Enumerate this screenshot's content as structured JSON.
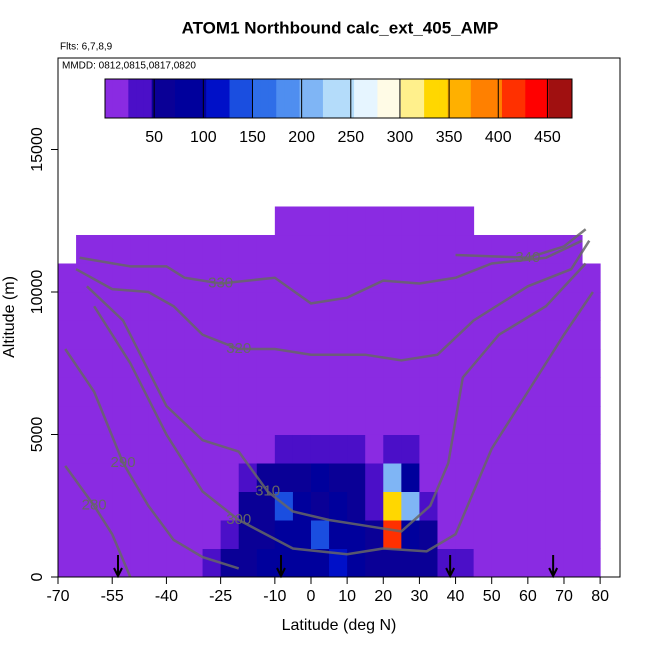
{
  "chart_data": {
    "type": "heatmap",
    "title": "ATOM1 Northbound calc_ext_405_AMP",
    "subtitle": "Flts: 6,7,8,9",
    "annotation": "MMDD: 0812,0815,0817,0820",
    "x_label": "Latitude (deg N)",
    "y_label": "Altitude (m)",
    "xlim": [
      -70,
      85.5
    ],
    "ylim": [
      0,
      18210
    ],
    "xticks": [
      -70,
      -55,
      -40,
      -25,
      -10,
      0,
      10,
      20,
      30,
      40,
      50,
      60,
      70,
      80
    ],
    "yticks": [
      0,
      5000,
      10000,
      15000
    ],
    "colorbar": {
      "lim": [
        0,
        475
      ],
      "ticks": [
        50,
        100,
        150,
        200,
        250,
        300,
        350,
        400,
        450
      ],
      "colors": [
        "#8a2be2",
        "#4b0fc8",
        "#0a0096",
        "#00009c",
        "#0010c8",
        "#1a4ee0",
        "#2f6ee8",
        "#4f8ef0",
        "#7fb5f5",
        "#b4dcfa",
        "#e6f5ff",
        "#fffbe6",
        "#fff08c",
        "#ffd700",
        "#ffb000",
        "#ff8000",
        "#ff3000",
        "#ff0000",
        "#a01010"
      ]
    },
    "grid": {
      "lat_edges": [
        -70,
        -65,
        -60,
        -55,
        -50,
        -45,
        -40,
        -35,
        -30,
        -25,
        -20,
        -15,
        -10,
        -5,
        0,
        5,
        10,
        15,
        20,
        25,
        30,
        35,
        40,
        45,
        50,
        55,
        60,
        65,
        70,
        75,
        80
      ],
      "alt_edges": [
        0,
        1000,
        2000,
        3000,
        4000,
        5000,
        6000,
        7000,
        8000,
        9000,
        10000,
        11000,
        12000,
        13000
      ],
      "values": [
        [
          5,
          15,
          20,
          15,
          10,
          10,
          8,
          15,
          40,
          60,
          70,
          80,
          90,
          80,
          90,
          100,
          80,
          70,
          60,
          70,
          60,
          40,
          30,
          10,
          5,
          10,
          15,
          5,
          10,
          5
        ],
        [
          5,
          5,
          10,
          8,
          5,
          5,
          5,
          10,
          20,
          40,
          60,
          70,
          80,
          90,
          140,
          90,
          80,
          70,
          420,
          90,
          60,
          20,
          10,
          5,
          5,
          5,
          5,
          10,
          5,
          5
        ],
        [
          5,
          5,
          5,
          5,
          5,
          5,
          5,
          5,
          10,
          20,
          60,
          70,
          130,
          80,
          70,
          80,
          60,
          40,
          330,
          200,
          40,
          10,
          5,
          5,
          5,
          5,
          5,
          5,
          5,
          5
        ],
        [
          5,
          5,
          5,
          5,
          5,
          5,
          5,
          5,
          5,
          10,
          30,
          60,
          70,
          60,
          80,
          60,
          50,
          30,
          220,
          90,
          20,
          5,
          5,
          5,
          5,
          5,
          5,
          5,
          5,
          5
        ],
        [
          5,
          5,
          5,
          5,
          5,
          5,
          5,
          5,
          5,
          5,
          10,
          20,
          40,
          40,
          30,
          40,
          30,
          20,
          40,
          30,
          10,
          5,
          5,
          5,
          5,
          5,
          5,
          5,
          5,
          5
        ],
        [
          5,
          5,
          5,
          5,
          5,
          5,
          5,
          5,
          5,
          5,
          5,
          5,
          5,
          10,
          5,
          5,
          5,
          5,
          10,
          5,
          5,
          5,
          5,
          5,
          5,
          5,
          5,
          5,
          5,
          5
        ],
        [
          5,
          5,
          5,
          5,
          5,
          5,
          5,
          5,
          5,
          5,
          5,
          5,
          5,
          5,
          5,
          5,
          5,
          5,
          5,
          5,
          5,
          5,
          5,
          5,
          5,
          5,
          5,
          5,
          5,
          5
        ],
        [
          5,
          5,
          5,
          5,
          5,
          5,
          10,
          5,
          5,
          5,
          5,
          5,
          5,
          5,
          5,
          5,
          5,
          5,
          5,
          5,
          5,
          5,
          5,
          5,
          5,
          10,
          5,
          5,
          5,
          5
        ],
        [
          5,
          5,
          5,
          5,
          5,
          5,
          5,
          5,
          5,
          5,
          5,
          5,
          5,
          5,
          5,
          5,
          5,
          5,
          5,
          5,
          5,
          5,
          5,
          5,
          5,
          5,
          5,
          5,
          5,
          5
        ],
        [
          5,
          5,
          5,
          5,
          10,
          5,
          5,
          5,
          5,
          5,
          5,
          5,
          5,
          5,
          5,
          5,
          5,
          5,
          5,
          5,
          5,
          5,
          5,
          5,
          5,
          5,
          5,
          5,
          5,
          5
        ],
        [
          5,
          5,
          5,
          5,
          5,
          5,
          5,
          5,
          5,
          5,
          5,
          5,
          5,
          5,
          5,
          5,
          5,
          5,
          5,
          5,
          5,
          5,
          5,
          5,
          5,
          5,
          5,
          5,
          5,
          5
        ],
        [
          null,
          5,
          5,
          5,
          5,
          5,
          5,
          5,
          5,
          5,
          5,
          5,
          5,
          5,
          5,
          5,
          5,
          5,
          5,
          5,
          5,
          5,
          5,
          5,
          5,
          5,
          5,
          5,
          5,
          null
        ],
        [
          null,
          null,
          null,
          null,
          null,
          null,
          null,
          null,
          null,
          null,
          null,
          null,
          5,
          5,
          5,
          5,
          5,
          5,
          5,
          5,
          5,
          5,
          5,
          null,
          null,
          null,
          null,
          null,
          null,
          null
        ]
      ]
    },
    "contours": [
      {
        "level": 280,
        "lat": [
          -68,
          -60,
          -55,
          -50
        ],
        "alt": [
          3900,
          2500,
          1500,
          0
        ]
      },
      {
        "level": 290,
        "lat": [
          -68,
          -60,
          -52,
          -45,
          -38,
          -30,
          -20
        ],
        "alt": [
          8000,
          6500,
          4000,
          2500,
          1300,
          700,
          300
        ]
      },
      {
        "level": 300,
        "lat": [
          -60,
          -50,
          -40,
          -30,
          -20,
          -5,
          10,
          20,
          32,
          40,
          50,
          60,
          70,
          78
        ],
        "alt": [
          9500,
          7500,
          5000,
          3000,
          2000,
          1000,
          800,
          1000,
          900,
          1500,
          4500,
          6500,
          8500,
          10000
        ]
      },
      {
        "level": 310,
        "lat": [
          -62,
          -52,
          -40,
          -30,
          -20,
          -12,
          -5,
          5,
          15,
          25,
          33,
          38,
          42,
          52,
          65,
          76
        ],
        "alt": [
          10200,
          9000,
          6000,
          4800,
          4400,
          3000,
          2300,
          2000,
          1800,
          1600,
          2500,
          4000,
          7000,
          8500,
          9500,
          11000
        ]
      },
      {
        "level": 320,
        "lat": [
          -65,
          -55,
          -45,
          -38,
          -30,
          -20,
          -10,
          0,
          15,
          25,
          35,
          45,
          60,
          72,
          77
        ],
        "alt": [
          10800,
          10100,
          10000,
          9500,
          8500,
          8000,
          8000,
          7800,
          7800,
          7600,
          7800,
          9000,
          10200,
          10800,
          11800
        ]
      },
      {
        "level": 330,
        "lat": [
          -64,
          -50,
          -40,
          -35,
          -25,
          -10,
          0,
          10,
          20,
          30,
          40,
          50,
          65,
          75
        ],
        "alt": [
          11200,
          10900,
          10900,
          10500,
          10300,
          10500,
          9600,
          9800,
          10400,
          10300,
          10500,
          11000,
          11200,
          11800
        ]
      },
      {
        "level": 340,
        "lat": [
          40,
          60,
          70,
          76
        ],
        "alt": [
          11300,
          11200,
          11600,
          12200
        ]
      }
    ],
    "flight_markers": [
      -53.4,
      -8.3,
      38.5,
      67
    ]
  }
}
